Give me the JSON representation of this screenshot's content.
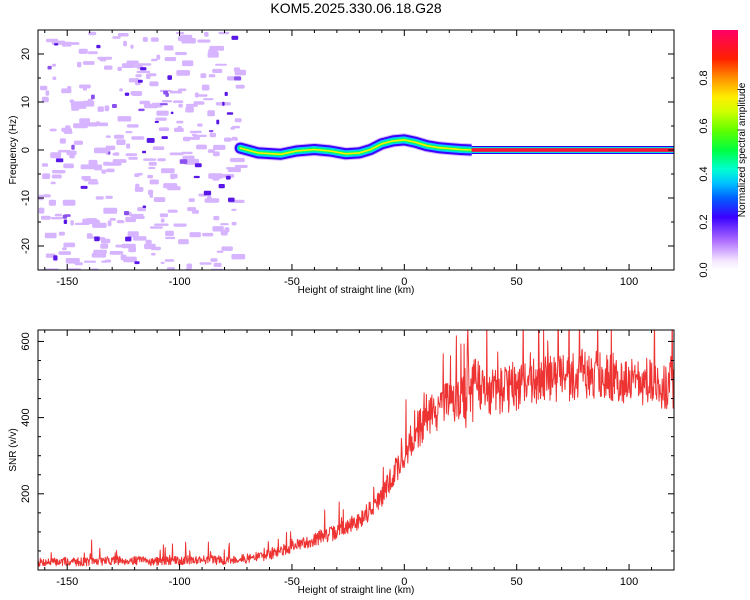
{
  "title": "KOM5.2025.330.06.18.G28",
  "chart_data": [
    {
      "type": "heatmap",
      "name": "spectrogram",
      "xlabel": "Height of straight line (km)",
      "ylabel": "Frequency (Hz)",
      "xlim": [
        -163,
        120
      ],
      "ylim": [
        -25,
        25
      ],
      "xticks": [
        -150,
        -100,
        -50,
        0,
        50,
        100
      ],
      "yticks": [
        -20,
        -10,
        0,
        10,
        20
      ],
      "xticklabels": [
        "-150",
        "-100",
        "-50",
        "0",
        "50",
        "100"
      ],
      "yticklabels": [
        "-20",
        "-10",
        "0",
        "10",
        "20"
      ],
      "noise_region_x": [
        -163,
        -75
      ],
      "signal_start_x": -73,
      "signal_track": [
        {
          "x": -73,
          "f": 0.4
        },
        {
          "x": -65,
          "f": -0.6
        },
        {
          "x": -55,
          "f": -0.9
        },
        {
          "x": -48,
          "f": -0.2
        },
        {
          "x": -40,
          "f": 0.1
        },
        {
          "x": -33,
          "f": -0.2
        },
        {
          "x": -26,
          "f": -0.8
        },
        {
          "x": -20,
          "f": -0.6
        },
        {
          "x": -15,
          "f": 0.1
        },
        {
          "x": -10,
          "f": 1.3
        },
        {
          "x": -5,
          "f": 1.9
        },
        {
          "x": 0,
          "f": 2.1
        },
        {
          "x": 5,
          "f": 1.6
        },
        {
          "x": 10,
          "f": 0.9
        },
        {
          "x": 15,
          "f": 0.5
        },
        {
          "x": 20,
          "f": 0.3
        },
        {
          "x": 25,
          "f": 0.1
        },
        {
          "x": 30,
          "f": 0.0
        },
        {
          "x": 120,
          "f": 0.0
        }
      ],
      "colorbar": {
        "label": "Normalized spectral amplitude",
        "range": [
          0,
          1
        ],
        "ticks": [
          0,
          0.2,
          0.4,
          0.6,
          0.8
        ],
        "ticklabels": [
          "0.0",
          "0.2",
          "0.4",
          "0.6",
          "0.8"
        ]
      }
    },
    {
      "type": "line",
      "name": "snr",
      "xlabel": "Height of straight line (km)",
      "ylabel": "SNR (v/v)",
      "xlim": [
        -163,
        120
      ],
      "ylim": [
        0,
        630
      ],
      "xticks": [
        -150,
        -100,
        -50,
        0,
        50,
        100
      ],
      "yticks": [
        200,
        400,
        600
      ],
      "xticklabels": [
        "-150",
        "-100",
        "-50",
        "0",
        "50",
        "100"
      ],
      "yticklabels": [
        "200",
        "400",
        "600"
      ],
      "color": "#ee3333",
      "series": [
        {
          "name": "SNR",
          "x": [
            -163,
            -150,
            -140,
            -130,
            -120,
            -110,
            -100,
            -90,
            -80,
            -70,
            -60,
            -50,
            -40,
            -30,
            -20,
            -15,
            -10,
            -5,
            0,
            5,
            10,
            15,
            20,
            25,
            28,
            30,
            32,
            35,
            40,
            50,
            60,
            70,
            80,
            90,
            100,
            110,
            120
          ],
          "values": [
            20,
            22,
            22,
            25,
            25,
            22,
            25,
            28,
            25,
            30,
            40,
            60,
            80,
            100,
            130,
            160,
            190,
            250,
            300,
            360,
            400,
            420,
            440,
            450,
            460,
            480,
            500,
            470,
            465,
            480,
            500,
            505,
            515,
            510,
            495,
            492,
            480
          ]
        }
      ]
    }
  ]
}
